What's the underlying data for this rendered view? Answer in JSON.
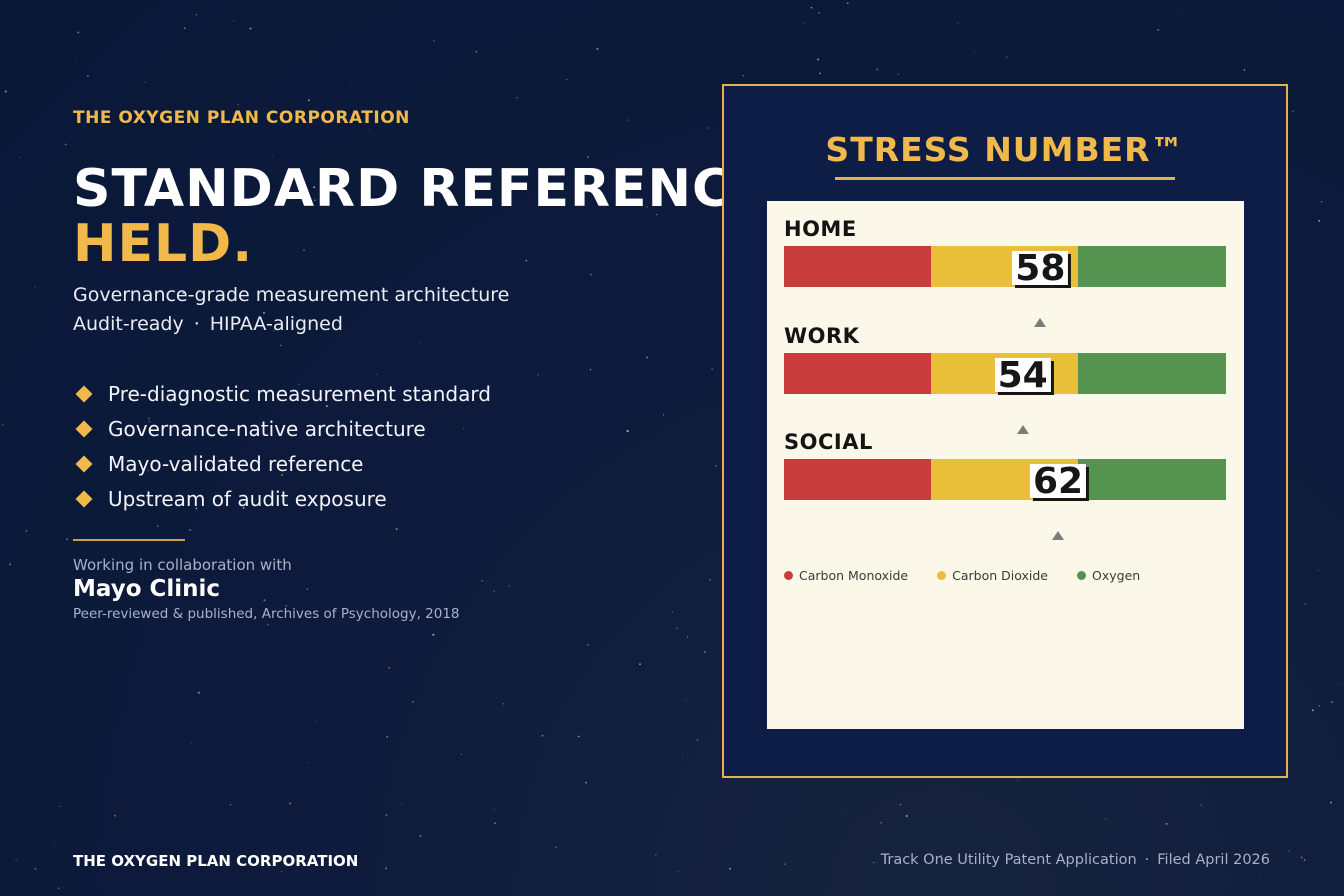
{
  "brand": {
    "top_label": "THE OXYGEN PLAN CORPORATION",
    "headline_line1": "STANDARD REFERENCE",
    "headline_line2": "HELD.",
    "subtitle": "Governance-grade measurement architecture",
    "tagline": [
      "Audit-ready",
      "·",
      "HIPAA-aligned"
    ]
  },
  "features": [
    "Pre-diagnostic measurement standard",
    "Governance-native architecture",
    "Mayo-validated reference",
    "Upstream of audit exposure"
  ],
  "collaboration": {
    "label": "Working in collaboration with",
    "partner": "Mayo Clinic",
    "note": "Peer-reviewed & published, Archives of Psychology, 2018"
  },
  "panel": {
    "title": "STRESS NUMBER™",
    "scale_min": 0,
    "scale_max": 100,
    "gauges": [
      {
        "label": "HOME",
        "value": 58
      },
      {
        "label": "WORK",
        "value": 54
      },
      {
        "label": "SOCIAL",
        "value": 62
      }
    ],
    "legend": [
      {
        "label": "Carbon Monoxide",
        "color": "#c83c3c"
      },
      {
        "label": "Carbon Dioxide",
        "color": "#e9be38"
      },
      {
        "label": "Oxygen",
        "color": "#559450"
      }
    ]
  },
  "footer": {
    "left": "THE OXYGEN PLAN CORPORATION",
    "right_parts": [
      "Track One Utility Patent Application",
      "·",
      "Filed April 2026"
    ]
  }
}
